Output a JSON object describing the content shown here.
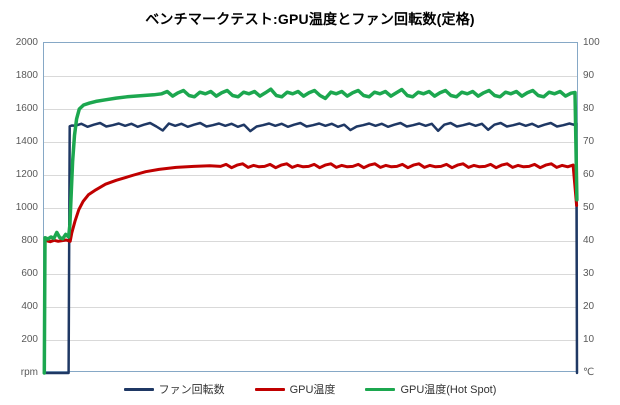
{
  "title": "ベンチマークテスト:GPU温度とファン回転数(定格)",
  "chart_data": {
    "type": "line",
    "title": "ベンチマークテスト:GPU温度とファン回転数(定格)",
    "grid": "horizontal",
    "legend_position": "bottom",
    "x_axis": {
      "label": "",
      "tick_labels_visible": false,
      "range_percent": [
        0,
        100
      ]
    },
    "left_axis": {
      "unit_label": "rpm",
      "min": 0,
      "max": 2000,
      "tick_step": 200,
      "ticks": [
        2000,
        1800,
        1600,
        1400,
        1200,
        1000,
        800,
        600,
        400,
        200
      ],
      "gridline_values": [
        1800,
        1600,
        1400,
        1200,
        1000,
        800,
        600,
        400,
        200
      ]
    },
    "right_axis": {
      "unit_label": "℃",
      "min": 0,
      "max": 100,
      "tick_step": 10,
      "ticks": [
        100,
        90,
        80,
        70,
        60,
        50,
        40,
        30,
        20,
        10
      ]
    },
    "series": [
      {
        "id": "fan-rpm",
        "name": "ファン回転数",
        "axis": "left",
        "unit": "rpm",
        "color": "#1f3864",
        "stroke_width": 2.5,
        "summary": {
          "idle": 0,
          "steady": 1505,
          "end": 0
        },
        "segments": [
          {
            "points": [
              [
                0,
                0
              ],
              [
                4.6,
                0
              ],
              [
                4.8,
                1495
              ],
              [
                5.2,
                1500
              ]
            ]
          },
          {
            "x0": 5.8,
            "dx": 1.17,
            "values": [
              1498,
              1510,
              1492,
              1505,
              1515,
              1494,
              1502,
              1512,
              1498,
              1510,
              1492,
              1505,
              1515,
              1494,
              1470,
              1512,
              1498,
              1510,
              1492,
              1505,
              1515,
              1494,
              1502,
              1512,
              1498,
              1510,
              1492,
              1505,
              1466,
              1494,
              1502,
              1512,
              1498,
              1510,
              1492,
              1505,
              1515,
              1494,
              1502,
              1512,
              1498,
              1510,
              1492,
              1505,
              1472,
              1494,
              1502,
              1512,
              1498,
              1510,
              1492,
              1505,
              1515,
              1494,
              1502,
              1512,
              1498,
              1510,
              1468,
              1505,
              1515,
              1494,
              1502,
              1512,
              1498,
              1510,
              1474,
              1505,
              1515,
              1494,
              1502,
              1512,
              1498,
              1510,
              1492,
              1505,
              1515,
              1494,
              1502,
              1512
            ]
          },
          {
            "points": [
              [
                99.0,
                1505
              ],
              [
                99.5,
                1512
              ],
              [
                99.62,
                0
              ]
            ]
          }
        ]
      },
      {
        "id": "gpu-temp",
        "name": "GPU温度",
        "axis": "right",
        "unit": "℃",
        "color": "#c00000",
        "stroke_width": 3,
        "summary": {
          "idle": 40,
          "steady": 62.8,
          "end": 51
        },
        "segments": [
          {
            "x0": 0.4,
            "dx": 0.75,
            "values": [
              40.1,
              39.8,
              40.2,
              39.9,
              40.1,
              40.3,
              39.9
            ]
          },
          {
            "points": [
              [
                5.2,
                42.5
              ],
              [
                5.8,
                46
              ],
              [
                6.5,
                49.5
              ],
              [
                7.3,
                52
              ],
              [
                8.3,
                54
              ],
              [
                9.7,
                55.5
              ],
              [
                11.5,
                57.2
              ],
              [
                13.5,
                58.4
              ],
              [
                16.8,
                60.0
              ],
              [
                19,
                61.0
              ],
              [
                21.5,
                61.7
              ],
              [
                24.7,
                62.3
              ],
              [
                28,
                62.6
              ],
              [
                31,
                62.8
              ]
            ]
          },
          {
            "x0": 33,
            "dx": 1.03,
            "values": [
              62.6,
              63.2,
              62.2,
              63.0,
              63.4,
              62.3,
              62.9,
              62.5,
              62.6,
              63.2,
              62.2,
              63.0,
              63.4,
              62.3,
              62.9,
              62.5,
              62.6,
              63.2,
              62.2,
              63.0,
              63.4,
              62.3,
              62.9,
              62.5,
              62.6,
              63.2,
              62.2,
              63.0,
              63.4,
              62.3,
              62.9,
              62.5,
              62.6,
              63.2,
              62.2,
              63.0,
              63.4,
              62.3,
              62.9,
              62.5,
              62.6,
              63.2,
              62.2,
              63.0,
              63.4,
              62.3,
              62.9,
              62.5,
              62.6,
              63.2,
              62.2,
              63.0,
              63.4,
              62.3,
              62.9,
              62.5,
              62.6,
              63.2,
              62.2,
              63.0,
              63.4,
              62.3,
              62.9,
              62.5
            ]
          },
          {
            "points": [
              [
                98.9,
                63.0
              ],
              [
                99.55,
                50.8
              ]
            ]
          }
        ]
      },
      {
        "id": "gpu-temp-hotspot",
        "name": "GPU温度(Hot Spot)",
        "axis": "right",
        "unit": "℃",
        "color": "#1ca74f",
        "stroke_width": 3.5,
        "summary": {
          "idle": 41,
          "steady": 84.5,
          "end": 52.5
        },
        "segments": [
          {
            "points": [
              [
                0.05,
                0
              ],
              [
                0.18,
                41.0
              ]
            ]
          },
          {
            "x0": 0.2,
            "dx": 0.55,
            "values": [
              41.0,
              40.6,
              41.2,
              40.8,
              42.6,
              41.0,
              40.7,
              42.0,
              41.2
            ]
          },
          {
            "points": [
              [
                4.85,
                45
              ],
              [
                5.1,
                55
              ],
              [
                5.35,
                64
              ],
              [
                5.7,
                72
              ],
              [
                6.1,
                77
              ],
              [
                6.6,
                80
              ],
              [
                7.4,
                81.2
              ],
              [
                8.5,
                81.8
              ],
              [
                9.7,
                82.3
              ],
              [
                11.5,
                82.8
              ],
              [
                13.5,
                83.3
              ],
              [
                15.5,
                83.7
              ],
              [
                18,
                84.0
              ],
              [
                20.5,
                84.3
              ]
            ]
          },
          {
            "x0": 22,
            "dx": 1.02,
            "values": [
              84.6,
              85.3,
              83.9,
              84.9,
              85.6,
              84.1,
              83.7,
              85.1,
              84.6,
              85.3,
              83.9,
              84.9,
              85.6,
              84.1,
              83.7,
              85.1,
              84.6,
              85.3,
              83.9,
              84.9,
              86.0,
              84.1,
              83.7,
              85.1,
              84.6,
              85.3,
              83.9,
              84.9,
              85.6,
              84.1,
              83.2,
              85.1,
              84.6,
              85.3,
              83.9,
              84.9,
              85.6,
              84.1,
              83.7,
              85.1,
              84.6,
              85.3,
              83.9,
              84.9,
              85.9,
              84.1,
              83.7,
              85.1,
              84.6,
              85.3,
              83.9,
              84.9,
              85.6,
              84.1,
              83.7,
              85.1,
              84.6,
              85.3,
              83.9,
              84.9,
              85.6,
              84.1,
              83.7,
              85.1,
              84.6,
              85.3,
              83.9,
              84.9,
              85.6,
              84.1,
              83.7,
              85.1,
              84.6,
              85.3,
              83.9,
              84.8
            ]
          },
          {
            "points": [
              [
                99.25,
                85.0
              ],
              [
                99.6,
                52.5
              ]
            ]
          }
        ]
      }
    ],
    "plot_style": {
      "border_color": "#86a8c6",
      "gridline_color": "#d9d9d9",
      "background": "#ffffff"
    }
  }
}
